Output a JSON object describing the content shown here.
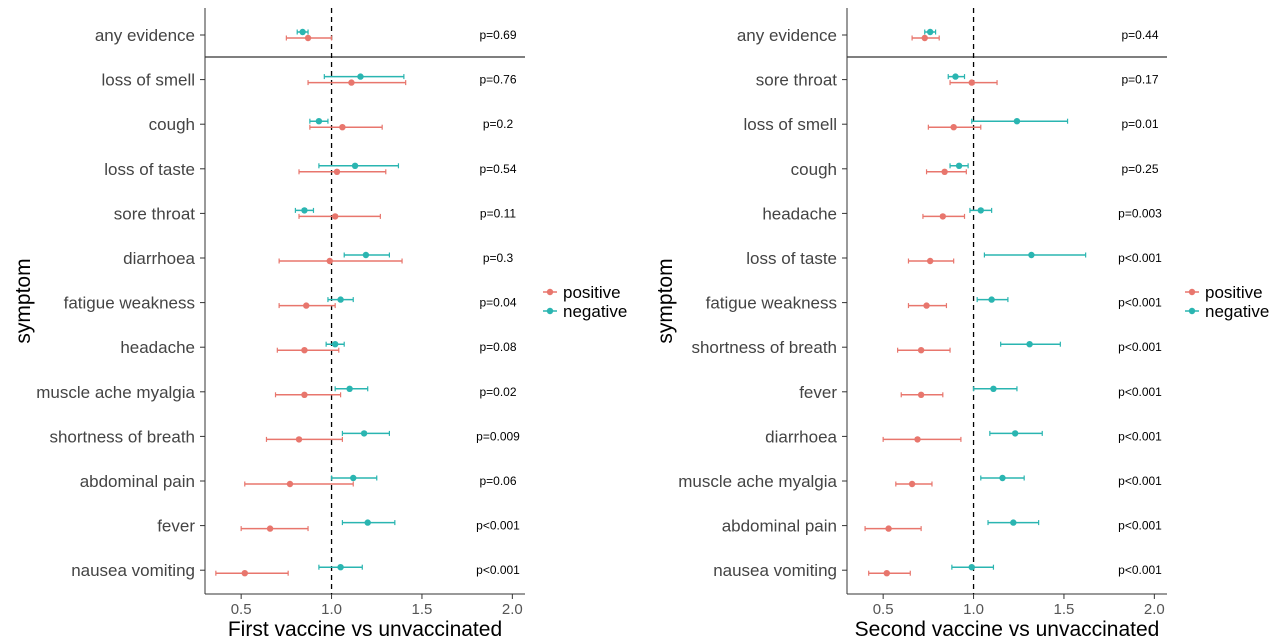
{
  "colors": {
    "positive": "#E8766D",
    "negative": "#2AB5B1",
    "axis": "#333333",
    "text": "#333333"
  },
  "legend": {
    "entries": [
      "positive",
      "negative"
    ],
    "placement": "right"
  },
  "chart_data": [
    {
      "type": "scatter",
      "subtype": "forest-plot",
      "xlabel": "First vaccine vs unvaccinated",
      "ylabel": "symptom",
      "xlim": [
        0.3,
        2.07
      ],
      "xticks": [
        0.5,
        1.0,
        1.5,
        2.0
      ],
      "xtick_labels": [
        "0.5",
        "1.0",
        "1.5",
        "2.0"
      ],
      "reference_line": 1.0,
      "categories": [
        "any evidence",
        "loss of smell",
        "cough",
        "loss of taste",
        "sore throat",
        "diarrhoea",
        "fatigue weakness",
        "headache",
        "muscle ache myalgia",
        "shortness of breath",
        "abdominal pain",
        "fever",
        "nausea vomiting"
      ],
      "pvalues": [
        "p=0.69",
        "p=0.76",
        "p=0.2",
        "p=0.54",
        "p=0.11",
        "p=0.3",
        "p=0.04",
        "p=0.08",
        "p=0.02",
        "p=0.009",
        "p=0.06",
        "p<0.001",
        "p<0.001"
      ],
      "series": [
        {
          "name": "positive",
          "values": [
            0.87,
            1.11,
            1.06,
            1.03,
            1.02,
            0.99,
            0.86,
            0.85,
            0.85,
            0.82,
            0.77,
            0.66,
            0.52
          ],
          "lower": [
            0.75,
            0.87,
            0.88,
            0.82,
            0.82,
            0.71,
            0.71,
            0.7,
            0.69,
            0.64,
            0.52,
            0.5,
            0.36
          ],
          "upper": [
            1.0,
            1.41,
            1.28,
            1.3,
            1.27,
            1.39,
            1.02,
            1.04,
            1.05,
            1.06,
            1.12,
            0.87,
            0.76
          ]
        },
        {
          "name": "negative",
          "values": [
            0.84,
            1.16,
            0.93,
            1.13,
            0.85,
            1.19,
            1.05,
            1.02,
            1.1,
            1.18,
            1.12,
            1.2,
            1.05
          ],
          "lower": [
            0.81,
            0.96,
            0.88,
            0.93,
            0.8,
            1.07,
            0.98,
            0.97,
            1.02,
            1.06,
            1.0,
            1.06,
            0.93
          ],
          "upper": [
            0.87,
            1.4,
            0.98,
            1.37,
            0.9,
            1.32,
            1.12,
            1.07,
            1.2,
            1.32,
            1.25,
            1.35,
            1.17
          ]
        }
      ]
    },
    {
      "type": "scatter",
      "subtype": "forest-plot",
      "xlabel": "Second vaccine vs unvaccinated",
      "ylabel": "symptom",
      "xlim": [
        0.3,
        2.07
      ],
      "xticks": [
        0.5,
        1.0,
        1.5,
        2.0
      ],
      "xtick_labels": [
        "0.5",
        "1.0",
        "1.5",
        "2.0"
      ],
      "reference_line": 1.0,
      "categories": [
        "any evidence",
        "sore throat",
        "loss of smell",
        "cough",
        "headache",
        "loss of taste",
        "fatigue weakness",
        "shortness of breath",
        "fever",
        "diarrhoea",
        "muscle ache myalgia",
        "abdominal pain",
        "nausea vomiting"
      ],
      "pvalues": [
        "p=0.44",
        "p=0.17",
        "p=0.01",
        "p=0.25",
        "p=0.003",
        "p<0.001",
        "p<0.001",
        "p<0.001",
        "p<0.001",
        "p<0.001",
        "p<0.001",
        "p<0.001",
        "p<0.001"
      ],
      "series": [
        {
          "name": "positive",
          "values": [
            0.73,
            0.99,
            0.89,
            0.84,
            0.83,
            0.76,
            0.74,
            0.71,
            0.71,
            0.69,
            0.66,
            0.53,
            0.52
          ],
          "lower": [
            0.66,
            0.87,
            0.75,
            0.74,
            0.72,
            0.64,
            0.64,
            0.58,
            0.6,
            0.5,
            0.57,
            0.4,
            0.42
          ],
          "upper": [
            0.81,
            1.13,
            1.04,
            0.96,
            0.95,
            0.89,
            0.85,
            0.87,
            0.83,
            0.93,
            0.77,
            0.71,
            0.65
          ]
        },
        {
          "name": "negative",
          "values": [
            0.76,
            0.9,
            1.24,
            0.92,
            1.04,
            1.32,
            1.1,
            1.31,
            1.11,
            1.23,
            1.16,
            1.22,
            0.99
          ],
          "lower": [
            0.73,
            0.86,
            0.99,
            0.87,
            0.98,
            1.06,
            1.02,
            1.15,
            1.0,
            1.09,
            1.04,
            1.08,
            0.88
          ],
          "upper": [
            0.79,
            0.95,
            1.52,
            0.97,
            1.1,
            1.62,
            1.19,
            1.48,
            1.24,
            1.38,
            1.28,
            1.36,
            1.11
          ]
        }
      ]
    }
  ]
}
